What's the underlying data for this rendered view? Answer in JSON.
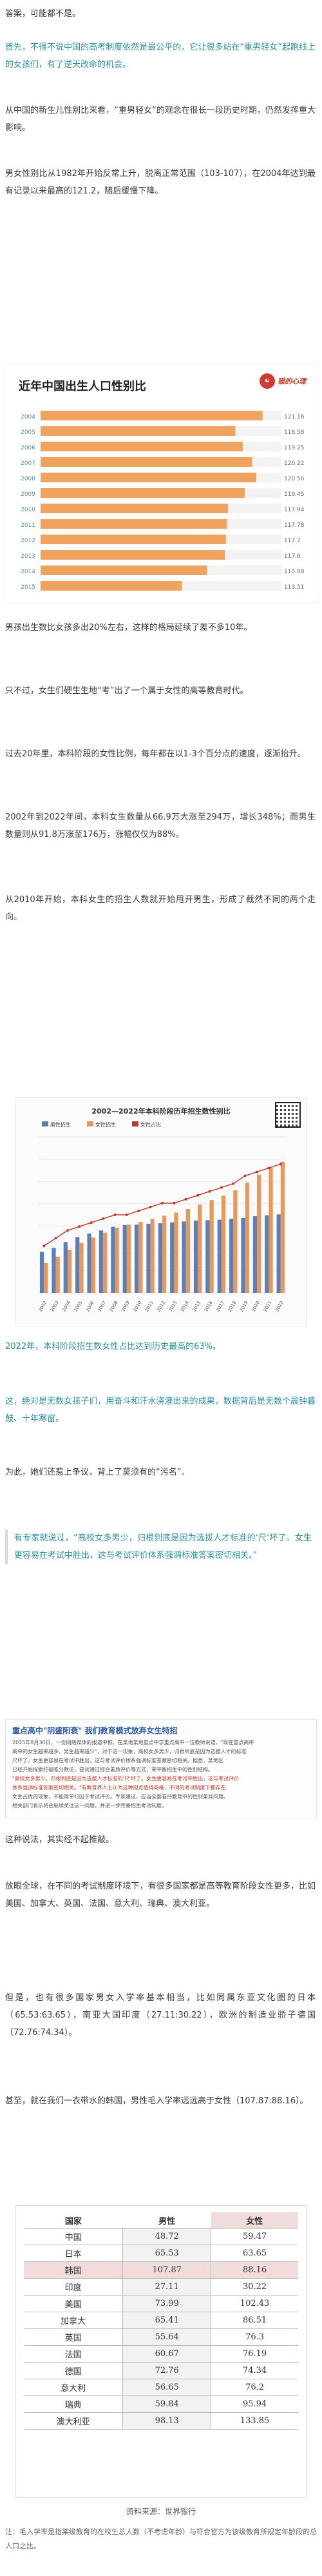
{
  "paragraphs": {
    "p1": "答案，可能都不是。",
    "p2": "首先，不得不说中国的高考制度依然是最公平的，它让很多站在“重男轻女”起跑线上的女孩们，有了逆天改命的机会。",
    "p3": "从中国的新生儿性别比来看，“重男轻女”的观念在很长一段历史时期，仍然发挥重大影响。",
    "p4": "男女性别比从1982年开始反常上升，脱离正常范围（103-107），在2004年达到最有记录以来最高的121.2，随后缓慢下降。",
    "p5": "男孩出生数比女孩多出20%左右，这样的格局延续了差不多10年。",
    "p6": "只不过，女生们硬生生地“考”出了一个属于女性的高等教育时代。",
    "p7": "过去20年里，本科阶段的女性比例，每年都在以1-3个百分点的速度，逐渐抬升。",
    "p8": "2002年到2022年间，本科女生数量从66.9万大涨至294万，增长348%；而男生数量则从91.8万涨至176万，涨幅仅仅为88%。",
    "p9": "从2010年开始，本科女生的招生人数就开始甩开男生，形成了截然不同的两个走向。",
    "p10": "2022年，本科阶段招生数女性占比达到历史最高的63%。",
    "p11": "这，绝对是无数女孩子们，用奋斗和汗水浇灌出来的成果，数据背后是无数个晨钟暮鼓、十年寒窗。",
    "p12": "为此，她们还惹上争议，背上了莫须有的“污名”。",
    "p13": "有专家就说过，“高校女多男少，归根到底是因为选拔人才标准的‘尺’坏了。女生更容易在考试中胜出，这与考试评价体系强调标准答案密切相关。”",
    "p14": "这种说法，其实经不起推敲。",
    "p15": "放眼全球，在不同的考试制度环境下，有很多国家都是高等教育阶段女性更多，比如美国、加拿大、英国、法国、意大利、瑞典、澳大利亚。",
    "p16": "但是，也有很多国家男女入学率基本相当，比如同属东亚文化圈的日本（65.53:63.65），南亚大国印度（27.11:30.22），欧洲的制造业骄子德国（72.76:74.34）。",
    "p17": "甚至，就在我们一衣带水的韩国，男性毛入学率远远高于女性（107.87:88.16）。"
  },
  "chart1": {
    "title": "近年中国出生人口性别比",
    "logo_text": "猫的心理",
    "bar_color": "#f0a35e",
    "label_color": "#5b88b5"
  },
  "chart2": {
    "title": "2002—2022年本科阶段历年招生数性别比",
    "legend": [
      "男性招生",
      "女性招生",
      "女性占比"
    ],
    "male_color": "#5b7fb8",
    "female_color": "#e8985a",
    "line_color": "#c0392b"
  },
  "chart_data": [
    {
      "type": "bar",
      "title": "近年中国出生人口性别比",
      "categories": [
        "2004",
        "2005",
        "2006",
        "2007",
        "2008",
        "2009",
        "2010",
        "2011",
        "2012",
        "2013",
        "2014",
        "2015"
      ],
      "values": [
        121.2,
        118.6,
        119.3,
        120.2,
        120.6,
        119.5,
        117.9,
        117.8,
        117.7,
        117.6,
        115.9,
        113.5
      ],
      "labels": [
        "121.16",
        "118.58",
        "119.25",
        "120.22",
        "120.56",
        "119.45",
        "117.94",
        "117.78",
        "117.7",
        "117.6",
        "115.88",
        "113.51"
      ],
      "xlim": [
        100,
        123
      ]
    },
    {
      "type": "bar",
      "title": "2002—2022年本科阶段历年招生数性别比",
      "categories": [
        "2002",
        "2003",
        "2004",
        "2005",
        "2006",
        "2007",
        "2008",
        "2009",
        "2010",
        "2011",
        "2012",
        "2013",
        "2014",
        "2015",
        "2016",
        "2017",
        "2018",
        "2019",
        "2020",
        "2021",
        "2022"
      ],
      "series": [
        {
          "name": "男性招生",
          "values": [
            91.8,
            101,
            114,
            125,
            133,
            140,
            148,
            152,
            153,
            155,
            156,
            158,
            160,
            162,
            163,
            164,
            166,
            168,
            172,
            174,
            176
          ]
        },
        {
          "name": "女性招生",
          "values": [
            66.9,
            81,
            96,
            112,
            124,
            135,
            146,
            153,
            159,
            166,
            173,
            180,
            188,
            198,
            208,
            218,
            230,
            247,
            265,
            280,
            294
          ]
        },
        {
          "name": "女性占比",
          "values": [
            42,
            44,
            46,
            47,
            48,
            49,
            50,
            50,
            51,
            52,
            53,
            53,
            54,
            55,
            56,
            57,
            58,
            60,
            61,
            62,
            63
          ]
        }
      ]
    },
    {
      "type": "table",
      "columns": [
        "国家",
        "男性",
        "女性"
      ],
      "rows": [
        [
          "中国",
          "48.72",
          "59.47"
        ],
        [
          "日本",
          "65.53",
          "63.65"
        ],
        [
          "韩国",
          "107.87",
          "88.16"
        ],
        [
          "印度",
          "27.11",
          "30.22"
        ],
        [
          "美国",
          "73.99",
          "102.43"
        ],
        [
          "加拿大",
          "65.41",
          "86.51"
        ],
        [
          "英国",
          "55.64",
          "76.3"
        ],
        [
          "法国",
          "60.67",
          "76.19"
        ],
        [
          "德国",
          "72.76",
          "74.34"
        ],
        [
          "意大利",
          "56.65",
          "76.2"
        ],
        [
          "瑞典",
          "59.84",
          "95.94"
        ],
        [
          "澳大利亚",
          "98.13",
          "133.85"
        ]
      ]
    }
  ],
  "screenshot": {
    "title": "重点高中\"阴盛阳衰\" 我们教育模式放弃女生特招",
    "lines": [
      "2015年8月30日，一份网络媒体的报道中称，在某地某地重点中学重点高中一位教师说道，\"现在重点高中",
      "高中的女生越来越多，男生越来越少\"，对于这一现象，高校女多男少，归根到底是因为选拔人才的标准",
      "尺坏了，女生更容易在考试中胜出，这与考试评价体系强调标准答案密切相关。据悉，某地区",
      "已经开始探索打破唯分数论，尝试通过综合素质评价等方式，来平衡招生中的性别结构。",
      "\"高校女多男少，归根到底是因为选拔人才标准的'尺'坏了。女生更容易在考试中胜出，这与考试评价",
      "体系强调标准答案密切相关。\"有教育界人士认为这种观点值得商榷，不同的考试制度下都存在",
      "女生占优的现象，不能简单归因于考试评价。专家建议，应当全面看待教育中的性别差异问题。",
      "相关部门表示将会继续关注这一问题，并进一步完善招生考试制度。"
    ]
  },
  "table": {
    "headers": [
      "国家",
      "男性",
      "女性"
    ],
    "source": "资料来源：世界银行",
    "note": "注：毛入学率是指某级教育的在校生总人数（不考虑年龄）与符合官方为该级教育所规定年龄段的总人口之比。",
    "highlight_color": "#f1dcdc"
  }
}
